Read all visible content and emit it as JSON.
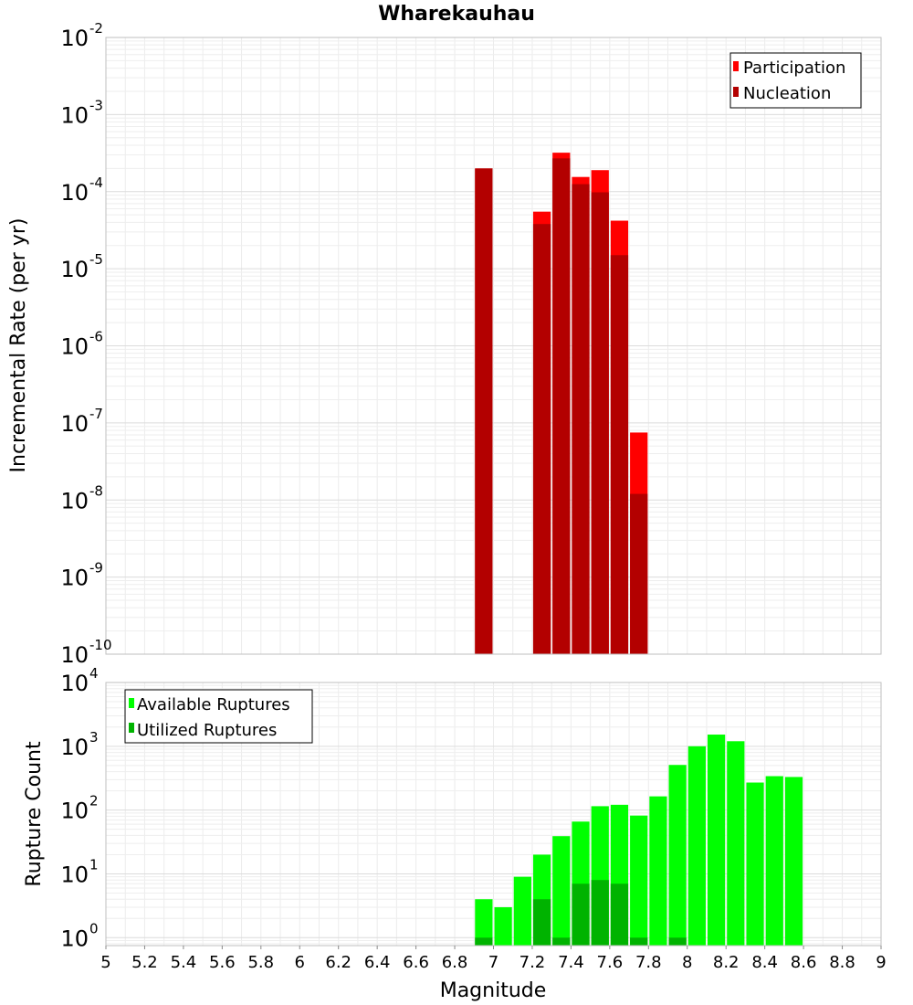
{
  "chart_data": [
    {
      "type": "bar",
      "title": "Wharekauhau",
      "ylabel": "Incremental Rate (per yr)",
      "xlabel": "",
      "xlim": [
        5,
        9
      ],
      "ylim": [
        1e-10,
        0.01
      ],
      "log_y": true,
      "grid": true,
      "bin_width": 0.1,
      "legend_placement": "top-right",
      "ytick_exponents": [
        "-10",
        "-9",
        "-8",
        "-7",
        "-6",
        "-5",
        "-4",
        "-3",
        "-2"
      ],
      "series": [
        {
          "name": "Participation",
          "color": "#ff0000",
          "x": [
            6.95,
            7.25,
            7.35,
            7.45,
            7.55,
            7.65,
            7.75
          ],
          "values": [
            0.0002,
            5.5e-05,
            0.00032,
            0.000155,
            0.00019,
            4.2e-05,
            7.5e-08
          ]
        },
        {
          "name": "Nucleation",
          "color": "#b30000",
          "x": [
            6.95,
            7.25,
            7.35,
            7.45,
            7.55,
            7.65,
            7.75
          ],
          "values": [
            0.0002,
            3.8e-05,
            0.00027,
            0.000125,
            9.8e-05,
            1.5e-05,
            1.2e-08
          ]
        }
      ]
    },
    {
      "type": "bar",
      "ylabel": "Rupture Count",
      "xlabel": "Magnitude",
      "xlim": [
        5,
        9
      ],
      "ylim": [
        0.75,
        10000
      ],
      "log_y": true,
      "grid": true,
      "bin_width": 0.1,
      "legend_placement": "top-left",
      "ytick_exponents": [
        "0",
        "1",
        "2",
        "3",
        "4"
      ],
      "xticks": [
        "5",
        "5.2",
        "5.4",
        "5.6",
        "5.8",
        "6",
        "6.2",
        "6.4",
        "6.6",
        "6.8",
        "7",
        "7.2",
        "7.4",
        "7.6",
        "7.8",
        "8",
        "8.2",
        "8.4",
        "8.6",
        "8.8",
        "9"
      ],
      "series": [
        {
          "name": "Available Ruptures",
          "color": "#00ff00",
          "x": [
            6.95,
            7.05,
            7.15,
            7.25,
            7.35,
            7.45,
            7.55,
            7.65,
            7.75,
            7.85,
            7.95,
            8.05,
            8.15,
            8.25,
            8.35,
            8.45,
            8.55
          ],
          "values": [
            4,
            3,
            9,
            20,
            39,
            66,
            115,
            121,
            82,
            164,
            510,
            1000,
            1525,
            1200,
            270,
            340,
            330
          ]
        },
        {
          "name": "Utilized Ruptures",
          "color": "#00b300",
          "x": [
            6.95,
            7.25,
            7.35,
            7.45,
            7.55,
            7.65,
            7.75,
            7.95
          ],
          "values": [
            1,
            4,
            1,
            7,
            8,
            7,
            1,
            1
          ]
        }
      ]
    }
  ]
}
